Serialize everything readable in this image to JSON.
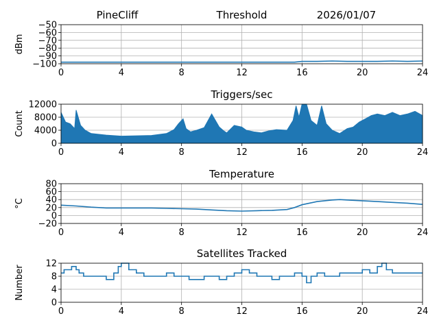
{
  "header": {
    "station": "PineCliff",
    "date": "2026/01/07"
  },
  "colors": {
    "series": "#1f77b4",
    "grid": "#b0b0b0"
  },
  "chart_data": [
    {
      "type": "line",
      "title": "Threshold",
      "xlabel": "",
      "ylabel": "dBm",
      "xlim": [
        0,
        24
      ],
      "ylim": [
        -100,
        -50
      ],
      "xticks": [
        0,
        4,
        8,
        12,
        16,
        20,
        24
      ],
      "yticks": [
        -100,
        -90,
        -80,
        -70,
        -60,
        -50
      ],
      "grid": true,
      "x": [
        0,
        2,
        4,
        6,
        8,
        10,
        12,
        14,
        15.5,
        16,
        17,
        18,
        19,
        20,
        21,
        22,
        23,
        24
      ],
      "y": [
        -98,
        -98,
        -98,
        -98,
        -98,
        -98,
        -98,
        -98,
        -98,
        -97,
        -97,
        -96.5,
        -97,
        -97,
        -97,
        -96.5,
        -97,
        -96.5
      ]
    },
    {
      "type": "line",
      "title": "Triggers/sec",
      "xlabel": "",
      "ylabel": "Count",
      "xlim": [
        0,
        24
      ],
      "ylim": [
        0,
        12000
      ],
      "xticks": [
        0,
        4,
        8,
        12,
        16,
        20,
        24
      ],
      "yticks": [
        0,
        4000,
        8000,
        12000
      ],
      "grid": true,
      "filled_band": true,
      "x": [
        0,
        0.3,
        0.6,
        0.9,
        1.0,
        1.3,
        1.6,
        2.0,
        3.0,
        4.0,
        5.0,
        6.0,
        7.0,
        7.5,
        7.8,
        8.1,
        8.3,
        8.6,
        9.0,
        9.5,
        10.0,
        10.5,
        10.8,
        11.0,
        11.5,
        12.0,
        12.3,
        12.8,
        13.3,
        13.8,
        14.3,
        15.0,
        15.4,
        15.6,
        15.8,
        16.0,
        16.3,
        16.6,
        17.0,
        17.3,
        17.6,
        18.0,
        18.5,
        19.0,
        19.4,
        19.8,
        20.2,
        20.6,
        21.0,
        21.5,
        22.0,
        22.5,
        23.0,
        23.5,
        24.0
      ],
      "upper": [
        9500,
        6500,
        6000,
        4500,
        10200,
        5500,
        4000,
        3000,
        2500,
        2200,
        2300,
        2400,
        3000,
        4200,
        6000,
        7500,
        4500,
        3500,
        4000,
        4800,
        9000,
        5000,
        3800,
        3200,
        5500,
        5000,
        4000,
        3500,
        3200,
        3800,
        4200,
        4000,
        7000,
        11500,
        8000,
        12000,
        12000,
        7000,
        5500,
        11500,
        6000,
        4000,
        3000,
        4500,
        5000,
        6500,
        7500,
        8500,
        9000,
        8500,
        9500,
        8500,
        9000,
        9800,
        8500
      ],
      "lower": [
        0,
        0,
        0,
        0,
        0,
        0,
        0,
        0,
        0,
        0,
        0,
        0,
        0,
        0,
        0,
        0,
        0,
        0,
        0,
        0,
        0,
        0,
        0,
        0,
        0,
        0,
        0,
        0,
        0,
        0,
        0,
        0,
        0,
        0,
        0,
        0,
        0,
        0,
        0,
        0,
        0,
        0,
        0,
        0,
        0,
        0,
        0,
        0,
        0,
        0,
        0,
        0,
        0,
        0,
        0
      ]
    },
    {
      "type": "line",
      "title": "Temperature",
      "xlabel": "",
      "ylabel": "°C",
      "xlim": [
        0,
        24
      ],
      "ylim": [
        -20,
        80
      ],
      "xticks": [
        0,
        4,
        8,
        12,
        16,
        20,
        24
      ],
      "yticks": [
        -20,
        0,
        20,
        40,
        60,
        80
      ],
      "grid": true,
      "x": [
        0,
        1,
        2,
        3,
        4,
        5,
        6,
        7,
        8,
        9,
        10,
        11,
        12,
        13,
        14,
        15,
        15.5,
        16,
        17,
        18,
        18.5,
        19,
        20,
        21,
        22,
        23,
        24
      ],
      "y": [
        26,
        24,
        21,
        19,
        19,
        19,
        19,
        18,
        17,
        16,
        14,
        12,
        11,
        12,
        13,
        15,
        20,
        27,
        35,
        39,
        40,
        39,
        37,
        35,
        33,
        31,
        28
      ]
    },
    {
      "type": "line",
      "title": "Satellites Tracked",
      "xlabel": "",
      "ylabel": "Number",
      "xlim": [
        0,
        24
      ],
      "ylim": [
        0,
        12
      ],
      "xticks": [
        0,
        4,
        8,
        12,
        16,
        20,
        24
      ],
      "yticks": [
        0,
        4,
        8,
        12
      ],
      "grid": true,
      "step": true,
      "x": [
        0,
        0.2,
        0.7,
        1.0,
        1.2,
        1.5,
        2.0,
        2.5,
        3.0,
        3.5,
        3.8,
        4.0,
        4.5,
        5.0,
        5.5,
        6.0,
        7.0,
        7.5,
        8.0,
        8.5,
        9.0,
        9.5,
        10.0,
        10.5,
        11.0,
        11.5,
        12.0,
        12.5,
        13.0,
        13.5,
        14.0,
        14.5,
        15.0,
        15.5,
        16.0,
        16.3,
        16.6,
        17.0,
        17.5,
        18.0,
        18.5,
        19.0,
        19.5,
        20.0,
        20.5,
        21.0,
        21.3,
        21.6,
        22.0,
        22.5,
        23.0,
        24.0
      ],
      "y": [
        9,
        10,
        11,
        10,
        9,
        8,
        8,
        8,
        7,
        9,
        11,
        12,
        10,
        9,
        8,
        8,
        9,
        8,
        8,
        7,
        7,
        8,
        8,
        7,
        8,
        9,
        10,
        9,
        8,
        8,
        7,
        8,
        8,
        9,
        8,
        6,
        8,
        9,
        8,
        8,
        9,
        9,
        9,
        10,
        9,
        11,
        12,
        10,
        9,
        9,
        9,
        9
      ]
    }
  ]
}
